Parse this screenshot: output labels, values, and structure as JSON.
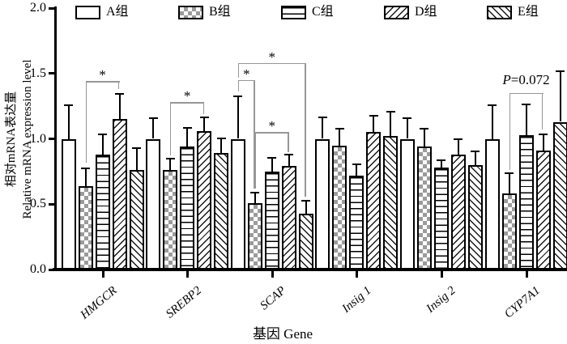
{
  "figure": {
    "y_axis": {
      "label_zh": "相对mRNA表达量",
      "label_en": "Relative mRNA  expression level",
      "tick_labels": [
        "0.0",
        "0.5",
        "1.0",
        "1.5",
        "2.0"
      ]
    },
    "x_axis": {
      "label": "基因  Gene"
    },
    "colors": {
      "bar_fill": "#ffffff",
      "line": "#000000",
      "checker_gray": "#9b9b9b",
      "bracket": "#979797"
    }
  },
  "chart_data": {
    "type": "bar",
    "title": "",
    "categories": [
      "HMGCR",
      "SREBP2",
      "SCAP",
      "Insig 1",
      "Insig 2",
      "CYP7A1"
    ],
    "xlabel": "基因  Gene",
    "ylabel": "相对mRNA表达量 Relative mRNA expression level",
    "ylim": [
      0,
      2
    ],
    "yticks": [
      0,
      0.5,
      1,
      1.5,
      2
    ],
    "grid": false,
    "legend_position": "top",
    "error_bars": "upper",
    "series": [
      {
        "name": "A组",
        "pattern": "plain",
        "values": [
          1.0,
          1.0,
          1.0,
          1.0,
          1.0,
          1.0
        ],
        "errors": [
          0.25,
          0.15,
          0.32,
          0.16,
          0.15,
          0.25
        ]
      },
      {
        "name": "B组",
        "pattern": "checker",
        "values": [
          0.64,
          0.76,
          0.51,
          0.95,
          0.94,
          0.58
        ],
        "errors": [
          0.13,
          0.08,
          0.07,
          0.12,
          0.13,
          0.15
        ]
      },
      {
        "name": "C组",
        "pattern": "hlines",
        "values": [
          0.88,
          0.94,
          0.75,
          0.72,
          0.78,
          1.03
        ],
        "errors": [
          0.15,
          0.14,
          0.1,
          0.08,
          0.05,
          0.23
        ]
      },
      {
        "name": "D组",
        "pattern": "hatch-forward",
        "values": [
          1.15,
          1.06,
          0.79,
          1.05,
          0.88,
          0.91
        ],
        "errors": [
          0.19,
          0.1,
          0.08,
          0.12,
          0.11,
          0.12
        ]
      },
      {
        "name": "E组",
        "pattern": "hatch-backward",
        "values": [
          0.76,
          0.89,
          0.43,
          1.02,
          0.8,
          1.13
        ],
        "errors": [
          0.16,
          0.11,
          0.09,
          0.18,
          0.1,
          0.38
        ]
      }
    ],
    "annotations": [
      {
        "category": "HMGCR",
        "from": "B组",
        "to": "D组",
        "y": 1.44,
        "label": "*",
        "left_to": 0.82,
        "right_to": 1.38
      },
      {
        "category": "SREBP2",
        "from": "B组",
        "to": "D组",
        "y": 1.28,
        "label": "*",
        "left_to": 0.87,
        "right_to": 1.19
      },
      {
        "category": "SCAP",
        "from": "A组",
        "to": "B组",
        "y": 1.45,
        "label": "*",
        "left_to": 1.36,
        "right_to": 0.62
      },
      {
        "category": "SCAP",
        "from": "A组",
        "to": "E组",
        "y": 1.58,
        "label": "*",
        "left_to": 1.47,
        "right_to": 0.56
      },
      {
        "category": "SCAP",
        "from": "B组",
        "to": "D组",
        "y": 1.05,
        "label": "*",
        "left_to": 0.62,
        "right_to": 0.9
      },
      {
        "category": "CYP7A1",
        "from": "B组",
        "to": "D组",
        "y": 1.35,
        "label": "P=0.072",
        "italic_first_char": true,
        "left_to": 0.76,
        "right_to": 1.07
      }
    ]
  }
}
